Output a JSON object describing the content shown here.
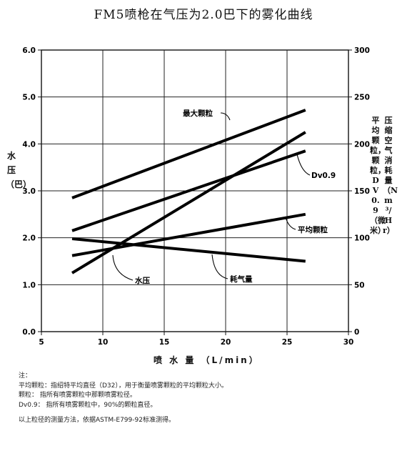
{
  "chart_data": {
    "type": "line",
    "title": "FM5喷枪在气压为2.0巴下的雾化曲线",
    "xlabel": "喷 水 量 （L/min）",
    "ylabel_left": "水压（巴）",
    "ylabel_right_col1": "压缩空气消耗量（Nm³/Hr）",
    "ylabel_right_col2": "平均颗粒，颗粒，DV0.9（微米）",
    "xlim": [
      5,
      30
    ],
    "ylim_left": [
      0,
      6
    ],
    "ylim_right": [
      0,
      300
    ],
    "x_ticks": [
      "5",
      "10",
      "15",
      "20",
      "25",
      "30"
    ],
    "y_left_ticks": [
      "0.0",
      "1.0",
      "2.0",
      "3.0",
      "4.0",
      "5.0",
      "6.0"
    ],
    "y_right_ticks": [
      "0",
      "50",
      "100",
      "150",
      "200",
      "250",
      "300"
    ],
    "grid": true,
    "series": [
      {
        "name": "最大颗粒",
        "axis": "left",
        "x": [
          7.5,
          26.5
        ],
        "y": [
          2.85,
          4.72
        ]
      },
      {
        "name": "Dv0.9",
        "axis": "left",
        "x": [
          7.5,
          26.5
        ],
        "y": [
          2.15,
          3.85
        ]
      },
      {
        "name": "平均颗粒",
        "axis": "left",
        "x": [
          7.5,
          26.5
        ],
        "y": [
          1.62,
          2.5
        ]
      },
      {
        "name": "水压",
        "axis": "left",
        "x": [
          7.5,
          26.5
        ],
        "y": [
          1.25,
          4.25
        ]
      },
      {
        "name": "耗气量",
        "axis": "left",
        "x": [
          7.5,
          26.5
        ],
        "y": [
          1.98,
          1.5
        ]
      }
    ]
  },
  "notes": {
    "heading": "注：",
    "line1": "平均颗粒：指绍特平均直径（D32），用于衡量喷雾颗粒的平均颗粒大小。",
    "line2": "颗粒：  指所有喷雾颗粒中那颗喷雾粒径。",
    "line3": "Dv0.9：    指所有喷雾颗粒中，90%的颗粒直径。",
    "line4": "以上粒径的测量方法，依据ASTM-E799-92标准测得。"
  }
}
